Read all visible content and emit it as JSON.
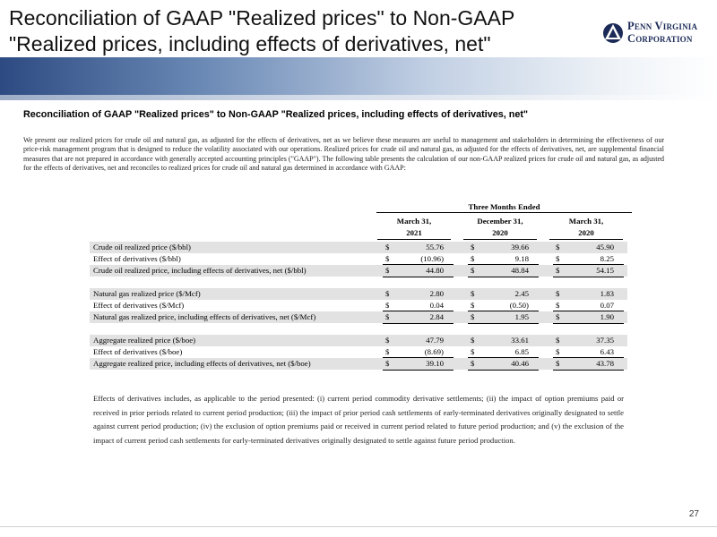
{
  "header": {
    "title": "Reconciliation of GAAP \"Realized prices\" to Non-GAAP \"Realized prices, including effects of derivatives, net\"",
    "logo_line1": "Penn Virginia",
    "logo_line2": "Corporation"
  },
  "subtitle": "Reconciliation of GAAP \"Realized prices\" to Non-GAAP \"Realized prices, including effects of derivatives, net\"",
  "intro": "We present our realized prices for crude oil and natural gas, as adjusted for the effects of derivatives, net as we believe these measures are useful to management and stakeholders in determining the effectiveness of our price-risk management program that is designed to reduce the volatility associated with our operations. Realized prices for crude oil and natural gas, as adjusted for the effects of derivatives, net, are supplemental financial measures that are not prepared in accordance with generally accepted accounting principles (\"GAAP\"). The following table presents the calculation of our non-GAAP realized prices for crude oil and natural gas, as adjusted for the effects of derivatives, net and reconciles to realized prices for crude oil and natural gas determined in accordance with GAAP:",
  "table": {
    "group_header": "Three Months Ended",
    "columns": [
      {
        "line1": "March 31,",
        "line2": "2021"
      },
      {
        "line1": "December 31,",
        "line2": "2020"
      },
      {
        "line1": "March 31,",
        "line2": "2020"
      }
    ],
    "currency": "$",
    "rows": [
      {
        "label": "Crude oil realized price ($/bbl)",
        "values": [
          "55.76",
          "39.66",
          "45.90"
        ]
      },
      {
        "label": "Effect of derivatives ($/bbl)",
        "values": [
          "(10.96)",
          "9.18",
          "8.25"
        ]
      },
      {
        "label": "Crude oil realized price, including effects of derivatives, net ($/bbl)",
        "values": [
          "44.80",
          "48.84",
          "54.15"
        ]
      },
      {
        "label": "Natural gas realized price ($/Mcf)",
        "values": [
          "2.80",
          "2.45",
          "1.83"
        ]
      },
      {
        "label": "Effect of derivatives ($/Mcf)",
        "values": [
          "0.04",
          "(0.50)",
          "0.07"
        ]
      },
      {
        "label": "Natural gas realized price, including effects of derivatives, net ($/Mcf)",
        "values": [
          "2.84",
          "1.95",
          "1.90"
        ]
      },
      {
        "label": "Aggregate realized price ($/boe)",
        "values": [
          "47.79",
          "33.61",
          "37.35"
        ]
      },
      {
        "label": "Effect of derivatives ($/boe)",
        "values": [
          "(8.69)",
          "6.85",
          "6.43"
        ]
      },
      {
        "label": "Aggregate realized price, including effects of derivatives, net ($/boe)",
        "values": [
          "39.10",
          "40.46",
          "43.78"
        ]
      }
    ]
  },
  "notes": "Effects of derivatives includes, as applicable to the period presented: (i) current period commodity derivative settlements; (ii) the impact of option premiums paid or received in prior periods related to current period production; (iii) the impact of prior period cash settlements of early-terminated derivatives originally designated to settle against current period production; (iv) the exclusion of option premiums paid or received in current period related to future period production; and (v) the exclusion of the impact of current period cash settlements for early-terminated derivatives originally designated to settle against future period production.",
  "page_number": "27",
  "colors": {
    "brand_navy": "#1b2a57",
    "band_blue": "#2d4b82",
    "row_shade": "#e2e2e2"
  }
}
